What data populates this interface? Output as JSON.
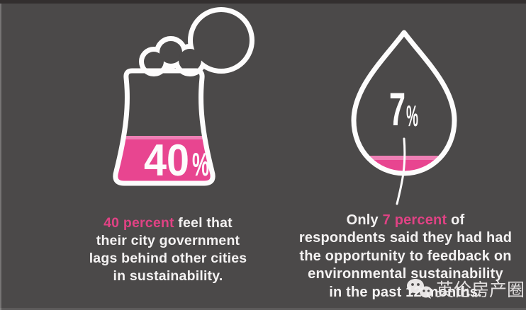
{
  "colors": {
    "bg": "#4b4949",
    "topbar": "#332f2f",
    "pink": "#e84590",
    "pink_light": "#ee7fb4",
    "highlight": "#e04284",
    "text": "#f4f2f2",
    "white": "#fdfcfc"
  },
  "chart_data": {
    "type": "pictogram",
    "categories": [
      "feel that their city government lags behind other cities in sustainability",
      "had the opportunity to feedback on environmental sustainability in the past 12 months"
    ],
    "values": [
      40,
      7
    ],
    "unit": "percent",
    "icons": [
      "cooling-tower-with-smoke",
      "leaf-droplet"
    ],
    "fill_color": "#e84590",
    "background": "#4b4949",
    "legend_position": "none",
    "grid": false
  },
  "left_stat": {
    "icon": "cooling-tower-with-smoke",
    "value": "40",
    "unit": "%",
    "caption_lines": [
      [
        {
          "t": "40 percent",
          "h": true
        },
        {
          "t": " feel that",
          "h": false
        }
      ],
      [
        {
          "t": "their city government",
          "h": false
        }
      ],
      [
        {
          "t": "lags behind other cities",
          "h": false
        }
      ],
      [
        {
          "t": "in sustainability.",
          "h": false
        }
      ]
    ]
  },
  "right_stat": {
    "icon": "leaf-droplet",
    "value": "7",
    "unit": "%",
    "caption_lines": [
      [
        {
          "t": "Only ",
          "h": false
        },
        {
          "t": "7 percent",
          "h": true
        },
        {
          "t": " of",
          "h": false
        }
      ],
      [
        {
          "t": "respondents said they had had",
          "h": false
        }
      ],
      [
        {
          "t": "the opportunity to feedback on",
          "h": false
        }
      ],
      [
        {
          "t": "environmental sustainability",
          "h": false
        }
      ],
      [
        {
          "t": "in the past 12 months.",
          "h": false
        }
      ]
    ]
  },
  "watermark": {
    "icon": "wechat-icon",
    "text": "英伦房产圈"
  }
}
